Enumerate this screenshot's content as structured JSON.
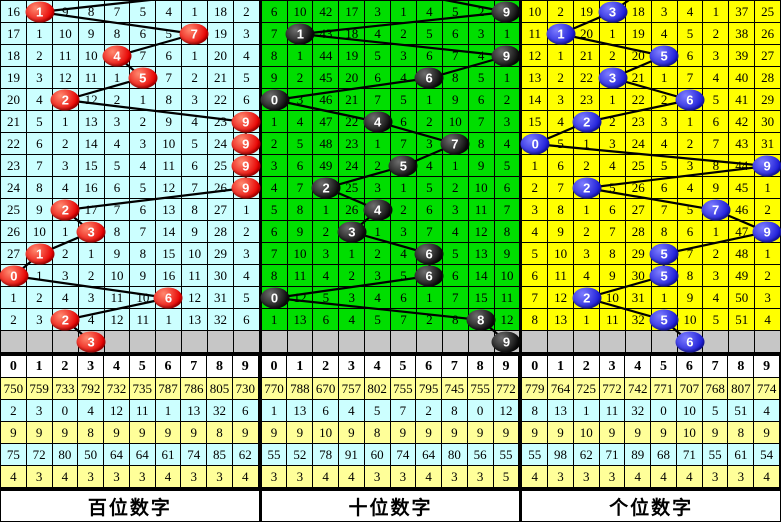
{
  "colors": {
    "pending_bg": "#c6c6c6",
    "stat_odd_bg": "#ffff99",
    "stat_even_bg": "#ccffff",
    "grid_line": "#000000",
    "trend_line": "#000000",
    "hundreds_cell_bg": "#ccffff",
    "tens_cell_bg": "#00de00",
    "units_cell_bg": "#ffff00",
    "hundreds_ball": "#e60000",
    "tens_ball": "#0a0a0a",
    "units_ball": "#1c1cd6"
  },
  "chart_data": {
    "type": "table",
    "digit_columns": [
      "0",
      "1",
      "2",
      "3",
      "4",
      "5",
      "6",
      "7",
      "8",
      "9"
    ],
    "panels": [
      {
        "title": "百位数字",
        "cell_bg": "#ccffff",
        "ball_color": "#e60000",
        "ball_highlight": "#ff8a70",
        "drawn_sequence": [
          1,
          7,
          4,
          5,
          2,
          9,
          9,
          9,
          9,
          2,
          3,
          1,
          0,
          6,
          2
        ],
        "pending_ball": {
          "col": 3,
          "label": "3"
        },
        "rows": [
          {
            "cells": [
              "16",
              "",
              "9",
              "8",
              "7",
              "5",
              "4",
              "1",
              "18",
              "2"
            ],
            "ball_col": 1,
            "ball_label": "1"
          },
          {
            "cells": [
              "17",
              "1",
              "10",
              "9",
              "8",
              "6",
              "5",
              "",
              "19",
              "3"
            ],
            "ball_col": 7,
            "ball_label": "7"
          },
          {
            "cells": [
              "18",
              "2",
              "11",
              "10",
              "",
              "7",
              "6",
              "1",
              "20",
              "4"
            ],
            "ball_col": 4,
            "ball_label": "4"
          },
          {
            "cells": [
              "19",
              "3",
              "12",
              "11",
              "1",
              "",
              "7",
              "2",
              "21",
              "5"
            ],
            "ball_col": 5,
            "ball_label": "5"
          },
          {
            "cells": [
              "20",
              "4",
              "",
              "12",
              "2",
              "1",
              "8",
              "3",
              "22",
              "6"
            ],
            "ball_col": 2,
            "ball_label": "2"
          },
          {
            "cells": [
              "21",
              "5",
              "1",
              "13",
              "3",
              "2",
              "9",
              "4",
              "23",
              ""
            ],
            "ball_col": 9,
            "ball_label": "9"
          },
          {
            "cells": [
              "22",
              "6",
              "2",
              "14",
              "4",
              "3",
              "10",
              "5",
              "24",
              ""
            ],
            "ball_col": 9,
            "ball_label": "9"
          },
          {
            "cells": [
              "23",
              "7",
              "3",
              "15",
              "5",
              "4",
              "11",
              "6",
              "25",
              ""
            ],
            "ball_col": 9,
            "ball_label": "9"
          },
          {
            "cells": [
              "24",
              "8",
              "4",
              "16",
              "6",
              "5",
              "12",
              "7",
              "26",
              ""
            ],
            "ball_col": 9,
            "ball_label": "9"
          },
          {
            "cells": [
              "25",
              "9",
              "",
              "17",
              "7",
              "6",
              "13",
              "8",
              "27",
              "1"
            ],
            "ball_col": 2,
            "ball_label": "2"
          },
          {
            "cells": [
              "26",
              "10",
              "1",
              "",
              "8",
              "7",
              "14",
              "9",
              "28",
              "2"
            ],
            "ball_col": 3,
            "ball_label": "3"
          },
          {
            "cells": [
              "27",
              "",
              "2",
              "1",
              "9",
              "8",
              "15",
              "10",
              "29",
              "3"
            ],
            "ball_col": 1,
            "ball_label": "1"
          },
          {
            "cells": [
              "",
              "1",
              "3",
              "2",
              "10",
              "9",
              "16",
              "11",
              "30",
              "4"
            ],
            "ball_col": 0,
            "ball_label": "0"
          },
          {
            "cells": [
              "1",
              "2",
              "4",
              "3",
              "11",
              "10",
              "",
              "12",
              "31",
              "5"
            ],
            "ball_col": 6,
            "ball_label": "6"
          },
          {
            "cells": [
              "2",
              "3",
              "",
              "4",
              "12",
              "11",
              "1",
              "13",
              "32",
              "6"
            ],
            "ball_col": 2,
            "ball_label": "2"
          }
        ],
        "stat_rows": [
          [
            "750",
            "759",
            "733",
            "792",
            "732",
            "735",
            "787",
            "786",
            "805",
            "730"
          ],
          [
            "2",
            "3",
            "0",
            "4",
            "12",
            "11",
            "1",
            "13",
            "32",
            "6"
          ],
          [
            "9",
            "9",
            "9",
            "8",
            "9",
            "9",
            "9",
            "9",
            "8",
            "9"
          ],
          [
            "75",
            "72",
            "80",
            "50",
            "64",
            "64",
            "61",
            "74",
            "85",
            "62"
          ],
          [
            "4",
            "3",
            "4",
            "3",
            "3",
            "3",
            "4",
            "3",
            "3",
            "4"
          ]
        ]
      },
      {
        "title": "十位数字",
        "cell_bg": "#00de00",
        "ball_color": "#0a0a0a",
        "ball_highlight": "#6e6e6e",
        "drawn_sequence": [
          9,
          1,
          9,
          6,
          0,
          4,
          7,
          5,
          2,
          4,
          3,
          6,
          6,
          0,
          8
        ],
        "pending_ball": {
          "col": 9,
          "label": "9"
        },
        "rows": [
          {
            "cells": [
              "6",
              "10",
              "42",
              "17",
              "3",
              "1",
              "4",
              "5",
              "2",
              ""
            ],
            "ball_col": 9,
            "ball_label": "9"
          },
          {
            "cells": [
              "7",
              "",
              "43",
              "18",
              "4",
              "2",
              "5",
              "6",
              "3",
              "1"
            ],
            "ball_col": 1,
            "ball_label": "1"
          },
          {
            "cells": [
              "8",
              "1",
              "44",
              "19",
              "5",
              "3",
              "6",
              "7",
              "4",
              ""
            ],
            "ball_col": 9,
            "ball_label": "9"
          },
          {
            "cells": [
              "9",
              "2",
              "45",
              "20",
              "6",
              "4",
              "",
              "8",
              "5",
              "1"
            ],
            "ball_col": 6,
            "ball_label": "6"
          },
          {
            "cells": [
              "",
              "3",
              "46",
              "21",
              "7",
              "5",
              "1",
              "9",
              "6",
              "2"
            ],
            "ball_col": 0,
            "ball_label": "0"
          },
          {
            "cells": [
              "1",
              "4",
              "47",
              "22",
              "",
              "6",
              "2",
              "10",
              "7",
              "3"
            ],
            "ball_col": 4,
            "ball_label": "4"
          },
          {
            "cells": [
              "2",
              "5",
              "48",
              "23",
              "1",
              "7",
              "3",
              "",
              "8",
              "4"
            ],
            "ball_col": 7,
            "ball_label": "7"
          },
          {
            "cells": [
              "3",
              "6",
              "49",
              "24",
              "2",
              "",
              "4",
              "1",
              "9",
              "5"
            ],
            "ball_col": 5,
            "ball_label": "5"
          },
          {
            "cells": [
              "4",
              "7",
              "",
              "25",
              "3",
              "1",
              "5",
              "2",
              "10",
              "6"
            ],
            "ball_col": 2,
            "ball_label": "2"
          },
          {
            "cells": [
              "5",
              "8",
              "1",
              "26",
              "",
              "2",
              "6",
              "3",
              "11",
              "7"
            ],
            "ball_col": 4,
            "ball_label": "4"
          },
          {
            "cells": [
              "6",
              "9",
              "2",
              "",
              "1",
              "3",
              "7",
              "4",
              "12",
              "8"
            ],
            "ball_col": 3,
            "ball_label": "3"
          },
          {
            "cells": [
              "7",
              "10",
              "3",
              "1",
              "2",
              "4",
              "",
              "5",
              "13",
              "9"
            ],
            "ball_col": 6,
            "ball_label": "6"
          },
          {
            "cells": [
              "8",
              "11",
              "4",
              "2",
              "3",
              "5",
              "",
              "6",
              "14",
              "10"
            ],
            "ball_col": 6,
            "ball_label": "6"
          },
          {
            "cells": [
              "",
              "12",
              "5",
              "3",
              "4",
              "6",
              "1",
              "7",
              "15",
              "11"
            ],
            "ball_col": 0,
            "ball_label": "0"
          },
          {
            "cells": [
              "1",
              "13",
              "6",
              "4",
              "5",
              "7",
              "2",
              "8",
              "",
              "12"
            ],
            "ball_col": 8,
            "ball_label": "8"
          }
        ],
        "stat_rows": [
          [
            "770",
            "788",
            "670",
            "757",
            "802",
            "755",
            "795",
            "745",
            "755",
            "772"
          ],
          [
            "1",
            "13",
            "6",
            "4",
            "5",
            "7",
            "2",
            "8",
            "0",
            "12"
          ],
          [
            "9",
            "9",
            "10",
            "9",
            "8",
            "9",
            "9",
            "9",
            "9",
            "9"
          ],
          [
            "55",
            "52",
            "78",
            "91",
            "60",
            "74",
            "64",
            "80",
            "56",
            "55"
          ],
          [
            "3",
            "3",
            "4",
            "4",
            "3",
            "3",
            "4",
            "3",
            "3",
            "5"
          ]
        ]
      },
      {
        "title": "个位数字",
        "cell_bg": "#ffff00",
        "ball_color": "#1c1cd6",
        "ball_highlight": "#7d7dff",
        "drawn_sequence": [
          3,
          1,
          5,
          3,
          6,
          2,
          0,
          9,
          2,
          7,
          9,
          5,
          5,
          2,
          5
        ],
        "pending_ball": {
          "col": 6,
          "label": "6"
        },
        "rows": [
          {
            "cells": [
              "10",
              "2",
              "19",
              "",
              "18",
              "3",
              "4",
              "1",
              "37",
              "25"
            ],
            "ball_col": 3,
            "ball_label": "3"
          },
          {
            "cells": [
              "11",
              "",
              "20",
              "1",
              "19",
              "4",
              "5",
              "2",
              "38",
              "26"
            ],
            "ball_col": 1,
            "ball_label": "1"
          },
          {
            "cells": [
              "12",
              "1",
              "21",
              "2",
              "20",
              "",
              "6",
              "3",
              "39",
              "27"
            ],
            "ball_col": 5,
            "ball_label": "5"
          },
          {
            "cells": [
              "13",
              "2",
              "22",
              "",
              "21",
              "1",
              "7",
              "4",
              "40",
              "28"
            ],
            "ball_col": 3,
            "ball_label": "3"
          },
          {
            "cells": [
              "14",
              "3",
              "23",
              "1",
              "22",
              "2",
              "",
              "5",
              "41",
              "29"
            ],
            "ball_col": 6,
            "ball_label": "6"
          },
          {
            "cells": [
              "15",
              "4",
              "",
              "2",
              "23",
              "3",
              "1",
              "6",
              "42",
              "30"
            ],
            "ball_col": 2,
            "ball_label": "2"
          },
          {
            "cells": [
              "",
              "5",
              "1",
              "3",
              "24",
              "4",
              "2",
              "7",
              "43",
              "31"
            ],
            "ball_col": 0,
            "ball_label": "0"
          },
          {
            "cells": [
              "1",
              "6",
              "2",
              "4",
              "25",
              "5",
              "3",
              "8",
              "44",
              ""
            ],
            "ball_col": 9,
            "ball_label": "9"
          },
          {
            "cells": [
              "2",
              "7",
              "",
              "5",
              "26",
              "6",
              "4",
              "9",
              "45",
              "1"
            ],
            "ball_col": 2,
            "ball_label": "2"
          },
          {
            "cells": [
              "3",
              "8",
              "1",
              "6",
              "27",
              "7",
              "5",
              "",
              "46",
              "2"
            ],
            "ball_col": 7,
            "ball_label": "7"
          },
          {
            "cells": [
              "4",
              "9",
              "2",
              "7",
              "28",
              "8",
              "6",
              "1",
              "47",
              ""
            ],
            "ball_col": 9,
            "ball_label": "9"
          },
          {
            "cells": [
              "5",
              "10",
              "3",
              "8",
              "29",
              "",
              "7",
              "2",
              "48",
              "1"
            ],
            "ball_col": 5,
            "ball_label": "5"
          },
          {
            "cells": [
              "6",
              "11",
              "4",
              "9",
              "30",
              "",
              "8",
              "3",
              "49",
              "2"
            ],
            "ball_col": 5,
            "ball_label": "5"
          },
          {
            "cells": [
              "7",
              "12",
              "",
              "10",
              "31",
              "1",
              "9",
              "4",
              "50",
              "3"
            ],
            "ball_col": 2,
            "ball_label": "2"
          },
          {
            "cells": [
              "8",
              "13",
              "1",
              "11",
              "32",
              "",
              "10",
              "5",
              "51",
              "4"
            ],
            "ball_col": 5,
            "ball_label": "5"
          }
        ],
        "stat_rows": [
          [
            "779",
            "764",
            "725",
            "772",
            "742",
            "771",
            "707",
            "768",
            "807",
            "774"
          ],
          [
            "8",
            "13",
            "1",
            "11",
            "32",
            "0",
            "10",
            "5",
            "51",
            "4"
          ],
          [
            "9",
            "9",
            "10",
            "9",
            "9",
            "9",
            "10",
            "9",
            "8",
            "9"
          ],
          [
            "55",
            "98",
            "62",
            "71",
            "89",
            "68",
            "71",
            "55",
            "61",
            "54"
          ],
          [
            "4",
            "3",
            "3",
            "3",
            "4",
            "4",
            "4",
            "3",
            "3",
            "4"
          ]
        ]
      }
    ]
  }
}
